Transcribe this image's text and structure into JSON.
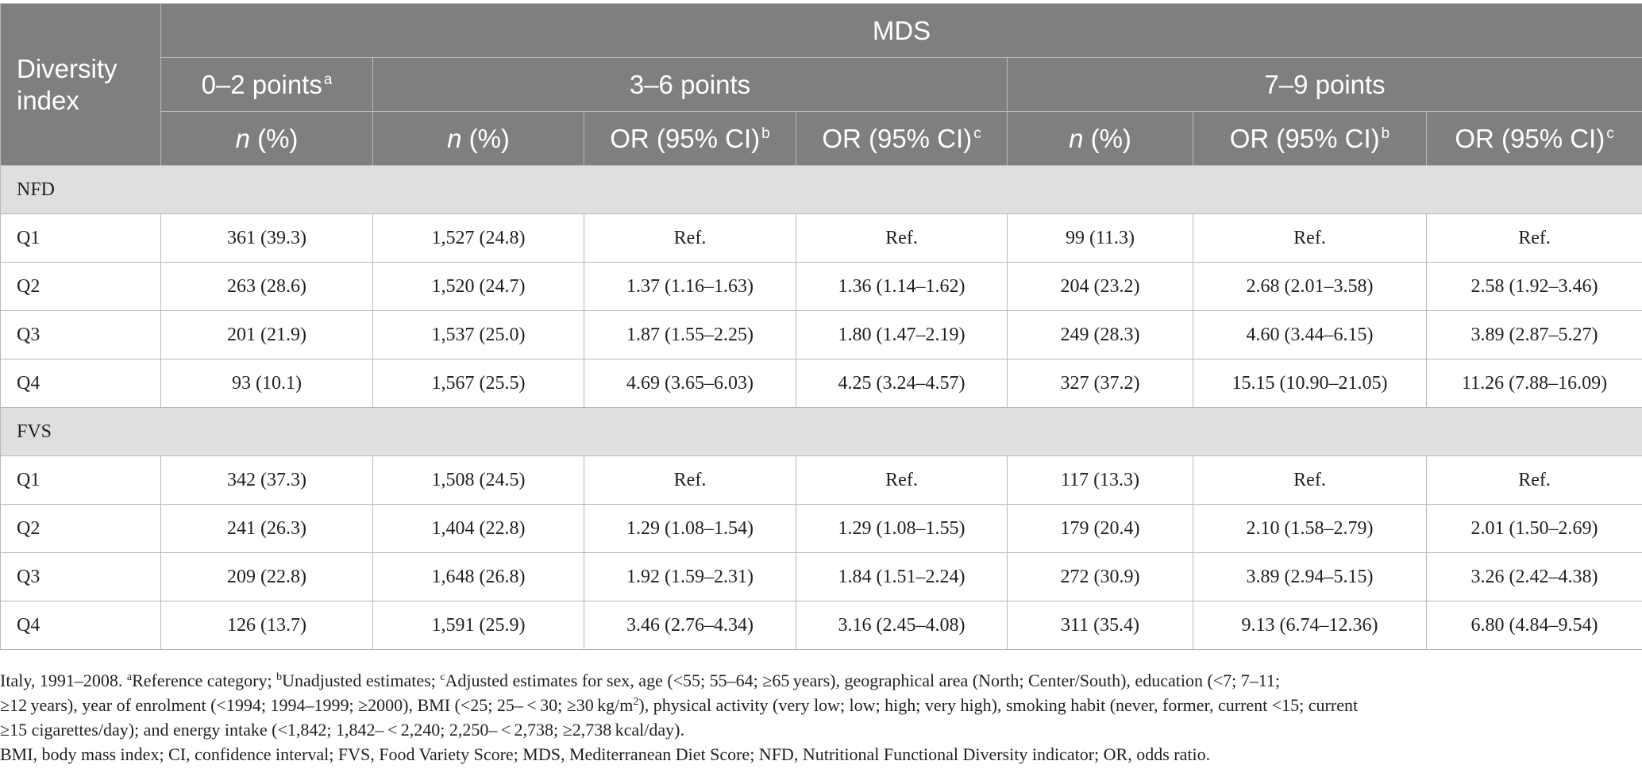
{
  "header": {
    "diversity_index": "Diversity index",
    "mds": "MDS",
    "groups": [
      "0–2 points",
      "3–6 points",
      "7–9 points"
    ],
    "group_sup_a": "a",
    "n_pct": "n",
    "pct_suffix": " (%)",
    "or_ci": "OR (95% CI)",
    "sup_b": "b",
    "sup_c": "c"
  },
  "sections": [
    {
      "name": "NFD",
      "rows": [
        {
          "q": "Q1",
          "cells": [
            "361 (39.3)",
            "1,527 (24.8)",
            "Ref.",
            "Ref.",
            "99 (11.3)",
            "Ref.",
            "Ref."
          ]
        },
        {
          "q": "Q2",
          "cells": [
            "263 (28.6)",
            "1,520 (24.7)",
            "1.37 (1.16–1.63)",
            "1.36 (1.14–1.62)",
            "204 (23.2)",
            "2.68 (2.01–3.58)",
            "2.58 (1.92–3.46)"
          ]
        },
        {
          "q": "Q3",
          "cells": [
            "201 (21.9)",
            "1,537 (25.0)",
            "1.87 (1.55–2.25)",
            "1.80 (1.47–2.19)",
            "249 (28.3)",
            "4.60 (3.44–6.15)",
            "3.89 (2.87–5.27)"
          ]
        },
        {
          "q": "Q4",
          "cells": [
            "93 (10.1)",
            "1,567 (25.5)",
            "4.69 (3.65–6.03)",
            "4.25 (3.24–4.57)",
            "327 (37.2)",
            "15.15 (10.90–21.05)",
            "11.26 (7.88–16.09)"
          ]
        }
      ]
    },
    {
      "name": "FVS",
      "rows": [
        {
          "q": "Q1",
          "cells": [
            "342 (37.3)",
            "1,508 (24.5)",
            "Ref.",
            "Ref.",
            "117 (13.3)",
            "Ref.",
            "Ref."
          ]
        },
        {
          "q": "Q2",
          "cells": [
            "241 (26.3)",
            "1,404 (22.8)",
            "1.29 (1.08–1.54)",
            "1.29 (1.08–1.55)",
            "179 (20.4)",
            "2.10 (1.58–2.79)",
            "2.01 (1.50–2.69)"
          ]
        },
        {
          "q": "Q3",
          "cells": [
            "209 (22.8)",
            "1,648 (26.8)",
            "1.92 (1.59–2.31)",
            "1.84 (1.51–2.24)",
            "272 (30.9)",
            "3.89 (2.94–5.15)",
            "3.26 (2.42–4.38)"
          ]
        },
        {
          "q": "Q4",
          "cells": [
            "126 (13.7)",
            "1,591 (25.9)",
            "3.46 (2.76–4.34)",
            "3.16 (2.45–4.08)",
            "311 (35.4)",
            "9.13 (6.74–12.36)",
            "6.80 (4.84–9.54)"
          ]
        }
      ]
    }
  ],
  "footnotes": {
    "line1_lead": "Italy, 1991–2008. ",
    "sup_a": "a",
    "text_a": "Reference category; ",
    "sup_b": "b",
    "text_b": "Unadjusted estimates; ",
    "sup_c": "c",
    "text_c1": "Adjusted estimates for sex, age (<55; 55–64; ≥65 years), geographical area (North; Center/South), education (<7; 7–11;",
    "text_c2_pre": "≥12 years), year of enrolment (<1994; 1994–1999; ≥2000), BMI (<25; 25– < 30; ≥30 kg/m",
    "sup_2": "2",
    "text_c2_post": "), physical activity (very low; low; high; very high), smoking habit (never, former, current <15; current",
    "text_c3": "≥15 cigarettes/day); and energy intake (<1,842; 1,842– < 2,240; 2,250– < 2,738; ≥2,738 kcal/day).",
    "abbreviations": "BMI, body mass index; CI, confidence interval; FVS, Food Variety Score; MDS, Mediterranean Diet Score; NFD, Nutritional Functional Diversity indicator; OR, odds ratio."
  }
}
